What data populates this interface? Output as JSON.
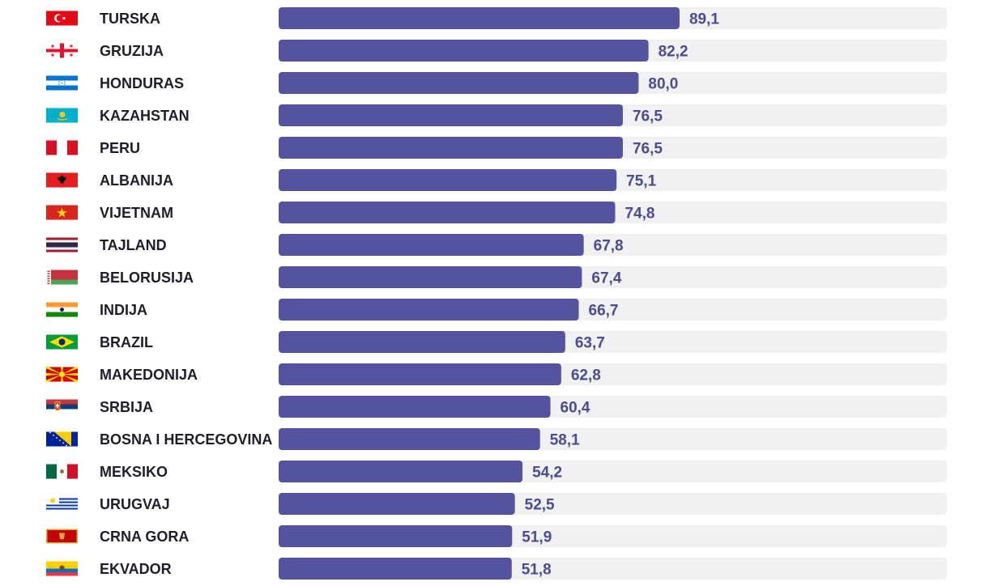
{
  "chart_data": {
    "type": "bar",
    "orientation": "horizontal",
    "title": "",
    "xlabel": "",
    "ylabel": "",
    "xlim": [
      0,
      100
    ],
    "grid": false,
    "legend": "none",
    "categories": [
      "TURSKA",
      "GRUZIJA",
      "HONDURAS",
      "KAZAHSTAN",
      "PERU",
      "ALBANIJA",
      "VIJETNAM",
      "TAJLAND",
      "BELORUSIJA",
      "INDIJA",
      "BRAZIL",
      "MAKEDONIJA",
      "SRBIJA",
      "BOSNA I HERCEGOVINA",
      "MEKSIKO",
      "URUGVAJ",
      "CRNA GORA",
      "EKVADOR"
    ],
    "values": [
      89.1,
      82.2,
      80.0,
      76.5,
      76.5,
      75.1,
      74.8,
      67.8,
      67.4,
      66.7,
      63.7,
      62.8,
      60.4,
      58.1,
      54.2,
      52.5,
      51.9,
      51.8
    ],
    "value_labels": [
      "89,1",
      "82,2",
      "80,0",
      "76,5",
      "76,5",
      "75,1",
      "74,8",
      "67,8",
      "67,4",
      "66,7",
      "63,7",
      "62,8",
      "60,4",
      "58,1",
      "54,2",
      "52,5",
      "51,9",
      "51,8"
    ],
    "flag_icons": [
      "turkey-flag-icon",
      "georgia-flag-icon",
      "honduras-flag-icon",
      "kazakhstan-flag-icon",
      "peru-flag-icon",
      "albania-flag-icon",
      "vietnam-flag-icon",
      "thailand-flag-icon",
      "belarus-flag-icon",
      "india-flag-icon",
      "brazil-flag-icon",
      "north-macedonia-flag-icon",
      "serbia-flag-icon",
      "bosnia-herzegovina-flag-icon",
      "mexico-flag-icon",
      "uruguay-flag-icon",
      "montenegro-flag-icon",
      "ecuador-flag-icon"
    ]
  },
  "colors": {
    "bar": "#5453a0",
    "track": "#f1f1f3",
    "value_text": "#4b4a93",
    "label_text": "#1e1e2a"
  }
}
